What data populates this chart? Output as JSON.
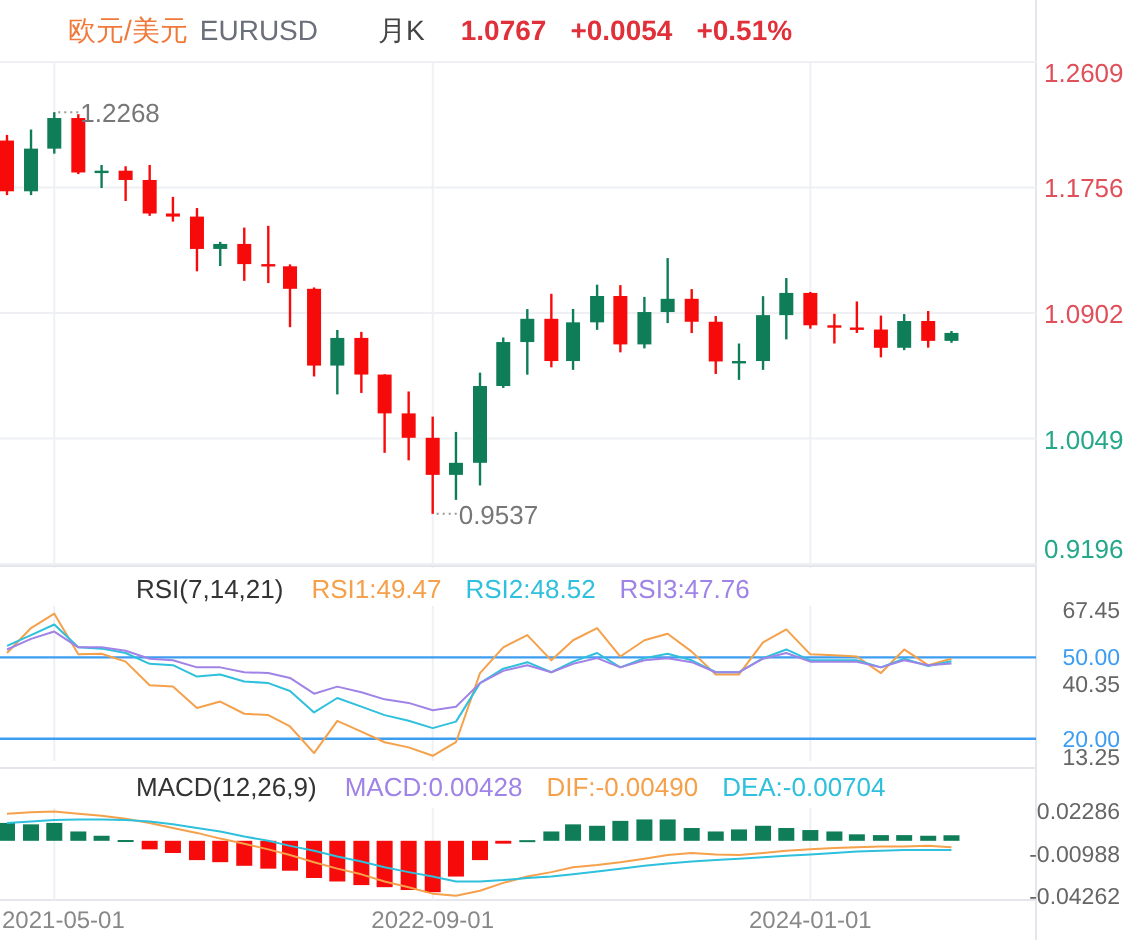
{
  "chart_data": [
    {
      "type": "candlestick",
      "title": "欧元/美元",
      "subtitle": "EURUSD",
      "annotations": [
        "月K",
        "1.0767",
        "+0.0054",
        "+0.51%",
        {
          "text": "1.2268",
          "x": "2021-05",
          "y": 1.2268
        },
        {
          "text": "0.9537",
          "x": "2022-09",
          "y": 0.9537
        }
      ],
      "x": [
        "2021-03",
        "2021-04",
        "2021-05",
        "2021-06",
        "2021-07",
        "2021-08",
        "2021-09",
        "2021-10",
        "2021-11",
        "2021-12",
        "2022-01",
        "2022-02",
        "2022-03",
        "2022-04",
        "2022-05",
        "2022-06",
        "2022-07",
        "2022-08",
        "2022-09",
        "2022-10",
        "2022-11",
        "2022-12",
        "2023-01",
        "2023-02",
        "2023-03",
        "2023-04",
        "2023-05",
        "2023-06",
        "2023-07",
        "2023-08",
        "2023-09",
        "2023-10",
        "2023-11",
        "2023-12",
        "2024-01",
        "2024-02",
        "2024-03",
        "2024-04",
        "2024-05",
        "2024-06",
        "2024-07"
      ],
      "ohlc": [
        [
          1.2075,
          1.2113,
          1.1704,
          1.173
        ],
        [
          1.173,
          1.215,
          1.1704,
          1.202
        ],
        [
          1.202,
          1.2268,
          1.1986,
          1.2228
        ],
        [
          1.2228,
          1.2254,
          1.1847,
          1.1858
        ],
        [
          1.1858,
          1.1909,
          1.1752,
          1.187
        ],
        [
          1.187,
          1.19,
          1.1664,
          1.1807
        ],
        [
          1.1807,
          1.1909,
          1.1563,
          1.1579
        ],
        [
          1.1579,
          1.1692,
          1.1524,
          1.1558
        ],
        [
          1.1558,
          1.1616,
          1.1186,
          1.1338
        ],
        [
          1.1338,
          1.1386,
          1.1222,
          1.1372
        ],
        [
          1.1372,
          1.1483,
          1.1121,
          1.1235
        ],
        [
          1.1235,
          1.1495,
          1.1106,
          1.122
        ],
        [
          1.122,
          1.1233,
          1.0806,
          1.1067
        ],
        [
          1.1067,
          1.1076,
          1.0471,
          1.0545
        ],
        [
          1.0545,
          1.0787,
          1.0349,
          1.0733
        ],
        [
          1.0733,
          1.0774,
          1.0359,
          1.0484
        ],
        [
          1.0484,
          1.0486,
          0.9952,
          1.022
        ],
        [
          1.022,
          1.0369,
          0.9901,
          1.0054
        ],
        [
          1.0054,
          1.0198,
          0.9537,
          0.9802
        ],
        [
          0.9802,
          1.0094,
          0.9632,
          0.9884
        ],
        [
          0.9884,
          1.0497,
          0.973,
          1.0406
        ],
        [
          1.0406,
          1.0736,
          1.0393,
          1.0705
        ],
        [
          1.0705,
          1.0929,
          1.0483,
          1.0863
        ],
        [
          1.0863,
          1.1033,
          1.0533,
          1.0576
        ],
        [
          1.0576,
          1.093,
          1.0516,
          1.0839
        ],
        [
          1.0839,
          1.1095,
          1.0788,
          1.1018
        ],
        [
          1.1018,
          1.1092,
          1.0635,
          1.0689
        ],
        [
          1.0689,
          1.1012,
          1.0662,
          1.0909
        ],
        [
          1.0909,
          1.1276,
          1.0834,
          1.0999
        ],
        [
          1.0999,
          1.1065,
          1.0766,
          1.0843
        ],
        [
          1.0843,
          1.0882,
          1.0488,
          1.0573
        ],
        [
          1.0573,
          1.0695,
          1.0448,
          1.0576
        ],
        [
          1.0576,
          1.1017,
          1.0516,
          1.0888
        ],
        [
          1.0888,
          1.114,
          1.0723,
          1.1039
        ],
        [
          1.1039,
          1.1046,
          1.0796,
          1.0819
        ],
        [
          1.0819,
          1.0897,
          1.0695,
          1.0804
        ],
        [
          1.0804,
          1.0981,
          1.0767,
          1.079
        ],
        [
          1.079,
          1.0885,
          1.0601,
          1.0666
        ],
        [
          1.0666,
          1.0895,
          1.065,
          1.0848
        ],
        [
          1.0848,
          1.0916,
          1.0667,
          1.0713
        ],
        [
          1.0713,
          1.078,
          1.07,
          1.0767
        ]
      ],
      "colors": [
        "#f70a0a",
        "#0f7d57",
        "#0f7d57",
        "#f70a0a",
        "#0f7d57",
        "#f70a0a",
        "#f70a0a",
        "#f70a0a",
        "#f70a0a",
        "#0f7d57",
        "#f70a0a",
        "#f70a0a",
        "#f70a0a",
        "#f70a0a",
        "#0f7d57",
        "#f70a0a",
        "#f70a0a",
        "#f70a0a",
        "#f70a0a",
        "#0f7d57",
        "#0f7d57",
        "#0f7d57",
        "#0f7d57",
        "#f70a0a",
        "#0f7d57",
        "#0f7d57",
        "#f70a0a",
        "#0f7d57",
        "#0f7d57",
        "#f70a0a",
        "#f70a0a",
        "#0f7d57",
        "#0f7d57",
        "#0f7d57",
        "#f70a0a",
        "#f70a0a",
        "#f70a0a",
        "#f70a0a",
        "#0f7d57",
        "#f70a0a",
        "#0f7d57"
      ],
      "xlim": [
        "2021-02-20",
        "2024-10-18"
      ],
      "xticks": [
        "2021-05-01",
        "2022-09-01",
        "2024-01-01"
      ],
      "ylim": [
        0.9196,
        1.2609
      ],
      "yticks": [
        0.9196,
        1.0049,
        1.0902,
        1.1756,
        1.2609
      ],
      "grid": true,
      "tick_labels": "y"
    },
    {
      "type": "line",
      "title": "RSI(7,14,21)",
      "legend": "top",
      "x": [
        "2021-03",
        "2021-04",
        "2021-05",
        "2021-06",
        "2021-07",
        "2021-08",
        "2021-09",
        "2021-10",
        "2021-11",
        "2021-12",
        "2022-01",
        "2022-02",
        "2022-03",
        "2022-04",
        "2022-05",
        "2022-06",
        "2022-07",
        "2022-08",
        "2022-09",
        "2022-10",
        "2022-11",
        "2022-12",
        "2023-01",
        "2023-02",
        "2023-03",
        "2023-04",
        "2023-05",
        "2023-06",
        "2023-07",
        "2023-08",
        "2023-09",
        "2023-10",
        "2023-11",
        "2023-12",
        "2024-01",
        "2024-02",
        "2024-03",
        "2024-04",
        "2024-05",
        "2024-06",
        "2024-07"
      ],
      "series": [
        {
          "name": "RSI1:49.47",
          "color": "#f5a04a",
          "values": [
            51.6,
            60.8,
            66.1,
            51.1,
            51.3,
            48.4,
            39.7,
            39.2,
            31.3,
            33.7,
            29.2,
            28.7,
            24.5,
            14.7,
            26.6,
            22.6,
            18.7,
            16.8,
            13.7,
            18.7,
            44.2,
            53.7,
            58.2,
            48.9,
            56.3,
            60.8,
            50.3,
            56.3,
            58.7,
            52.1,
            43.7,
            43.7,
            55.5,
            60.3,
            51.1,
            50.8,
            50.3,
            44.2,
            52.9,
            47.1,
            49.47
          ]
        },
        {
          "name": "RSI2:48.52",
          "color": "#2ec0dc",
          "values": [
            54.2,
            58.2,
            62.1,
            53.7,
            53.2,
            51.6,
            47.6,
            47.1,
            42.9,
            43.7,
            41.1,
            40.5,
            37.6,
            29.7,
            35.0,
            31.8,
            28.7,
            26.6,
            23.9,
            26.3,
            40.5,
            45.8,
            48.2,
            44.5,
            48.4,
            51.6,
            46.3,
            49.7,
            51.3,
            48.9,
            44.5,
            44.5,
            49.7,
            52.9,
            48.9,
            48.9,
            48.9,
            46.3,
            49.5,
            46.8,
            48.52
          ]
        },
        {
          "name": "RSI3:47.76",
          "color": "#a083e6",
          "values": [
            52.9,
            56.8,
            59.5,
            53.7,
            53.7,
            52.4,
            49.5,
            48.9,
            46.3,
            46.3,
            44.5,
            44.2,
            42.4,
            36.6,
            39.2,
            37.1,
            34.5,
            33.2,
            30.5,
            31.8,
            40.5,
            45.0,
            47.1,
            44.5,
            47.6,
            49.7,
            46.3,
            48.9,
            49.7,
            48.2,
            44.5,
            44.5,
            49.5,
            51.6,
            48.4,
            48.4,
            48.4,
            46.3,
            48.9,
            47.1,
            47.76
          ]
        }
      ],
      "ref_lines": [
        {
          "axis": "y",
          "value": 50,
          "label": "50.00",
          "color": "#3d9df0"
        },
        {
          "axis": "y",
          "value": 20,
          "label": "20.00",
          "color": "#3d9df0"
        }
      ],
      "xlim": [
        "2021-02-20",
        "2024-10-18"
      ],
      "xticks": [
        "2021-05-01",
        "2022-09-01",
        "2024-01-01"
      ],
      "ylim": [
        13.25,
        67.45
      ],
      "yticks": [
        13.25,
        40.35,
        67.45
      ],
      "grid": "x",
      "tick_labels": "y"
    },
    {
      "type": "bar",
      "title": "MACD(12,26,9)",
      "legend": "top",
      "x": [
        "2021-03",
        "2021-04",
        "2021-05",
        "2021-06",
        "2021-07",
        "2021-08",
        "2021-09",
        "2021-10",
        "2021-11",
        "2021-12",
        "2022-01",
        "2022-02",
        "2022-03",
        "2022-04",
        "2022-05",
        "2022-06",
        "2022-07",
        "2022-08",
        "2022-09",
        "2022-10",
        "2022-11",
        "2022-12",
        "2023-01",
        "2023-02",
        "2023-03",
        "2023-04",
        "2023-05",
        "2023-06",
        "2023-07",
        "2023-08",
        "2023-09",
        "2023-10",
        "2023-11",
        "2023-12",
        "2024-01",
        "2024-02",
        "2024-03",
        "2024-04",
        "2024-05",
        "2024-06",
        "2024-07"
      ],
      "series": [
        {
          "name": "MACD:0.00428",
          "type": "bar",
          "color": "#a083e6",
          "colors": [
            "#0f7d57",
            "#0f7d57",
            "#0f7d57",
            "#0f7d57",
            "#0f7d57",
            "#0f7d57",
            "#f70a0a",
            "#f70a0a",
            "#f70a0a",
            "#f70a0a",
            "#f70a0a",
            "#f70a0a",
            "#f70a0a",
            "#f70a0a",
            "#f70a0a",
            "#f70a0a",
            "#f70a0a",
            "#f70a0a",
            "#f70a0a",
            "#f70a0a",
            "#f70a0a",
            "#f70a0a",
            "#0f7d57",
            "#0f7d57",
            "#0f7d57",
            "#0f7d57",
            "#0f7d57",
            "#0f7d57",
            "#0f7d57",
            "#0f7d57",
            "#0f7d57",
            "#0f7d57",
            "#0f7d57",
            "#0f7d57",
            "#0f7d57",
            "#0f7d57",
            "#0f7d57",
            "#0f7d57",
            "#0f7d57",
            "#0f7d57",
            "#0f7d57"
          ],
          "values": [
            0.0138,
            0.0127,
            0.0138,
            0.0072,
            0.0039,
            0.0006,
            -0.0066,
            -0.0094,
            -0.0149,
            -0.0165,
            -0.0193,
            -0.0215,
            -0.0231,
            -0.0287,
            -0.0314,
            -0.0342,
            -0.0358,
            -0.038,
            -0.0397,
            -0.0276,
            -0.0149,
            -0.0022,
            0.0005,
            0.0072,
            0.0127,
            0.0116,
            0.0154,
            0.0165,
            0.0165,
            0.0099,
            0.0072,
            0.0088,
            0.0116,
            0.0099,
            0.0083,
            0.0072,
            0.005,
            0.0044,
            0.0044,
            0.0039,
            0.00428
          ]
        },
        {
          "name": "DIF:-0.00490",
          "type": "line",
          "color": "#f5a04a",
          "values": [
            0.0209,
            0.022,
            0.0226,
            0.0209,
            0.0193,
            0.0171,
            0.0138,
            0.0099,
            0.0061,
            0.0017,
            -0.0022,
            -0.0066,
            -0.011,
            -0.0165,
            -0.0215,
            -0.0259,
            -0.0314,
            -0.0358,
            -0.0408,
            -0.0424,
            -0.0386,
            -0.0325,
            -0.0276,
            -0.0242,
            -0.0204,
            -0.0187,
            -0.0165,
            -0.0138,
            -0.011,
            -0.0094,
            -0.0105,
            -0.011,
            -0.0094,
            -0.0077,
            -0.0066,
            -0.0055,
            -0.005,
            -0.0044,
            -0.0044,
            -0.0039,
            -0.0049
          ]
        },
        {
          "name": "DEA:-0.00704",
          "type": "line",
          "color": "#2ec0dc",
          "values": [
            0.0138,
            0.0149,
            0.016,
            0.0165,
            0.0165,
            0.016,
            0.0149,
            0.0127,
            0.0099,
            0.0072,
            0.0033,
            0.0,
            -0.0039,
            -0.0077,
            -0.0121,
            -0.016,
            -0.0204,
            -0.0242,
            -0.0276,
            -0.0314,
            -0.0314,
            -0.0303,
            -0.0287,
            -0.0276,
            -0.0259,
            -0.0237,
            -0.0215,
            -0.0193,
            -0.0176,
            -0.016,
            -0.0149,
            -0.0138,
            -0.0127,
            -0.0116,
            -0.0105,
            -0.0094,
            -0.0083,
            -0.0077,
            -0.0072,
            -0.0072,
            -0.00704
          ]
        }
      ],
      "xlim": [
        "2021-02-20",
        "2024-10-18"
      ],
      "xticks": [
        "2021-05-01",
        "2022-09-01",
        "2024-01-01"
      ],
      "ylim": [
        -0.04262,
        0.02286
      ],
      "yticks": [
        -0.04262,
        -0.00988,
        0.02286
      ],
      "grid": "x"
    }
  ]
}
